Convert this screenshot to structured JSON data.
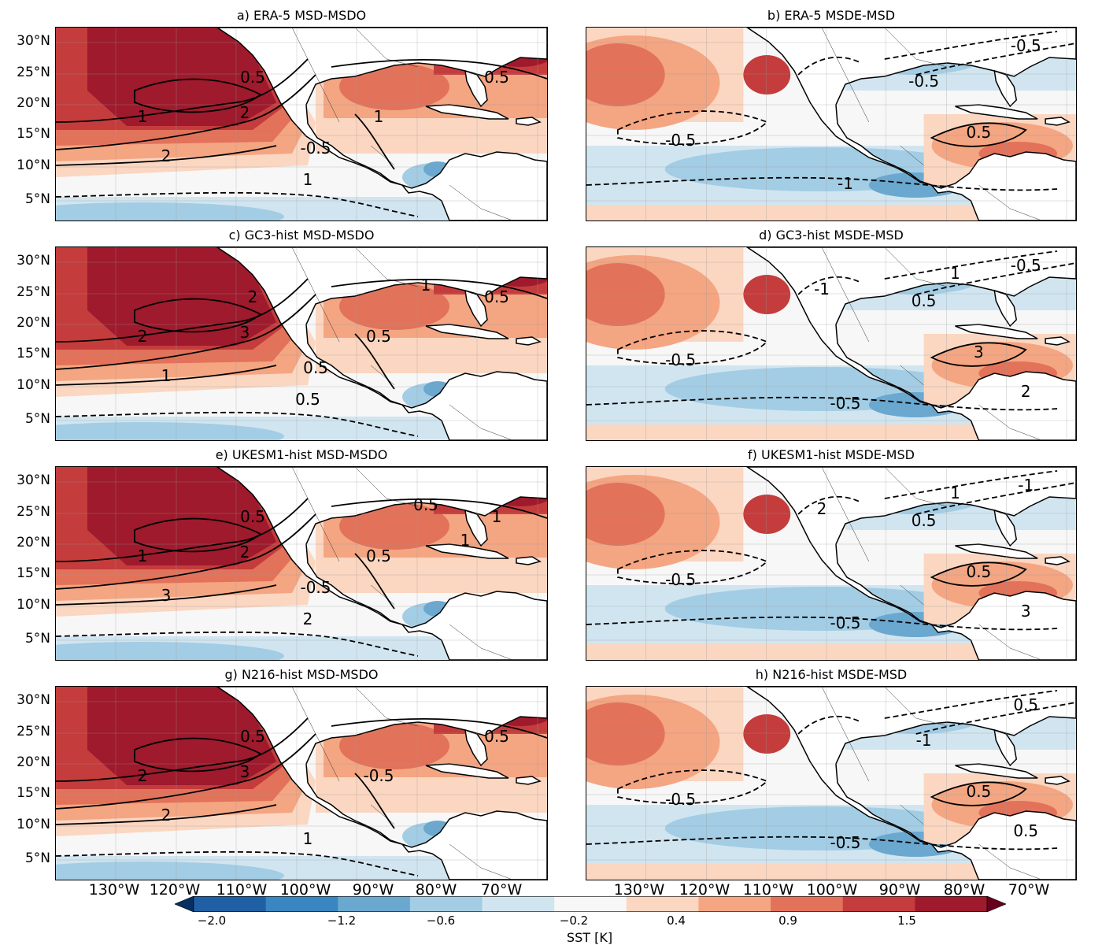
{
  "panels": [
    {
      "id": "a",
      "title": "a)  ERA-5 MSD-MSDO",
      "contour_labels": [
        "1",
        "2",
        "2",
        "1",
        "0.5",
        "1",
        "0.5",
        "-0.5"
      ]
    },
    {
      "id": "b",
      "title": "b) ERA-5 MSDE-MSD",
      "contour_labels": [
        "-0.5",
        "-1",
        "-0.5",
        "-0.5",
        "0.5"
      ]
    },
    {
      "id": "c",
      "title": "c)  GC3-hist MSD-MSDO",
      "contour_labels": [
        "2",
        "3",
        "1",
        "0.5",
        "0.5",
        "0.5",
        "2",
        "0.5",
        "1"
      ]
    },
    {
      "id": "d",
      "title": "d) GC3-hist MSDE-MSD",
      "contour_labels": [
        "-0.5",
        "-0.5",
        "-0.5",
        "0.5",
        "3",
        "2",
        "-1",
        "1"
      ]
    },
    {
      "id": "e",
      "title": "e)  UKESM1-hist MSD-MSDO",
      "contour_labels": [
        "1",
        "2",
        "3",
        "2",
        "1",
        "0.5",
        "0.5",
        "-0.5",
        "0.5",
        "1"
      ]
    },
    {
      "id": "f",
      "title": "f) UKESM1-hist MSDE-MSD",
      "contour_labels": [
        "-0.5",
        "-0.5",
        "-1",
        "0.5",
        "0.5",
        "3",
        "2",
        "1"
      ]
    },
    {
      "id": "g",
      "title": "g)  N216-hist MSD-MSDO",
      "contour_labels": [
        "2",
        "3",
        "2",
        "1",
        "0.5",
        "-0.5",
        "0.5"
      ]
    },
    {
      "id": "h",
      "title": "h) N216-hist MSDE-MSD",
      "contour_labels": [
        "-0.5",
        "-0.5",
        "0.5",
        "-1",
        "0.5",
        "0.5"
      ]
    }
  ],
  "latitude_labels": [
    "30°N",
    "25°N",
    "20°N",
    "15°N",
    "10°N",
    "5°N"
  ],
  "longitude_labels": [
    "130°W",
    "120°W",
    "110°W",
    "100°W",
    "90°W",
    "80°W",
    "70°W"
  ],
  "colorbar": {
    "label": "SST [K]",
    "ticks": [
      "−2.0",
      "−1.2",
      "−0.6",
      "−0.2",
      "0.4",
      "0.9",
      "1.5"
    ],
    "colormap": "RdBu_r"
  }
}
